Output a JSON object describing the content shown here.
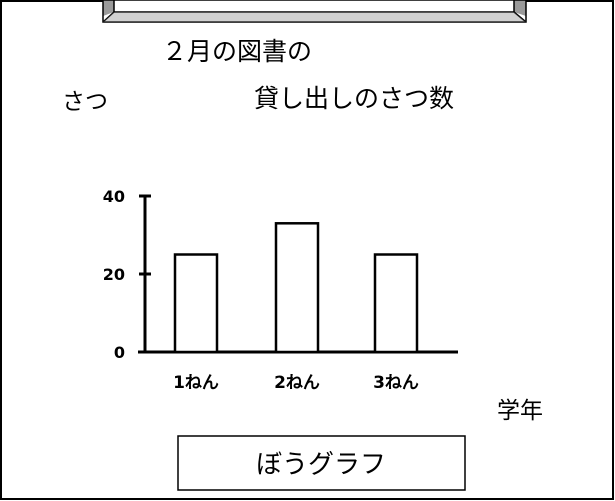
{
  "chart_data": {
    "type": "bar",
    "title_line1": "２月の図書の",
    "title_line2": "貸し出しのさつ数",
    "ylabel": "さつ",
    "xlabel": "学年",
    "categories": [
      "1ねん",
      "2ねん",
      "3ねん"
    ],
    "values": [
      25,
      33,
      25
    ],
    "yticks": [
      0,
      20,
      40
    ],
    "ylim": [
      0,
      40
    ],
    "grid": false,
    "caption": "ぼうグラフ"
  }
}
